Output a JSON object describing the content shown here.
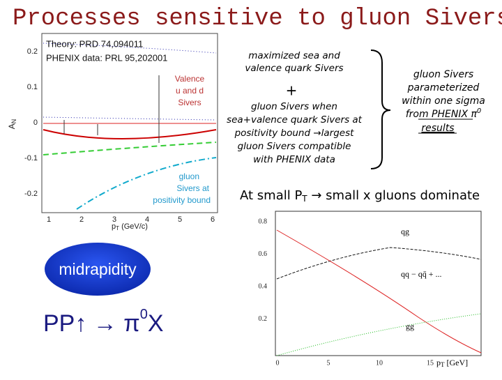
{
  "title": "Processes sensitive to  gluon Sivers",
  "left_plot": {
    "theory_ref": "Theory: PRD 74,094011",
    "data_ref": "PHENIX data: PRL 95,202001",
    "y_label": "A",
    "y_label_sub": "N",
    "yticks": [
      "0.2",
      "0.1",
      "0",
      "-0.1",
      "-0.2"
    ],
    "xticks": [
      "1",
      "2",
      "3",
      "4",
      "5",
      "6"
    ],
    "x_label": "p",
    "x_label_sub": "T",
    "x_label_unit": " (GeV/c)",
    "valence_label": [
      "Valence",
      "u and d",
      "Sivers"
    ],
    "gluon_label": [
      "gluon",
      "Sivers at",
      "positivity bound"
    ]
  },
  "middle": {
    "sea_valence": [
      "maximized sea  and",
      "valence quark Sivers"
    ],
    "plus": "+",
    "gluon_bound": [
      "gluon Sivers  when",
      "sea+valence quark Sivers at",
      "positivity  bound →largest",
      "gluon Sivers  compatible",
      "with PHENIX data"
    ]
  },
  "right": {
    "lines": [
      "gluon Sivers",
      "parameterized",
      "within one sigma"
    ],
    "from_pre": "from PHENIX π",
    "from_sup": "0",
    "results": "results"
  },
  "small_pt": {
    "pre": "At small P",
    "sub": "T",
    "post": " → small x  gluons dominate"
  },
  "midrapidity": "midrapidity",
  "reaction": {
    "pre": "PP↑ → π",
    "sup": "0",
    "post": "X"
  },
  "lower_plot": {
    "yticks": [
      "0.8",
      "0.6",
      "0.4",
      "0.2"
    ],
    "xticks": [
      "0",
      "5",
      "10",
      "15"
    ],
    "x_label": "p",
    "x_label_sub": "T",
    "x_label_unit": " [GeV]",
    "curve_labels": [
      "qg",
      "qq − qq̄ + ...",
      "gg"
    ]
  }
}
